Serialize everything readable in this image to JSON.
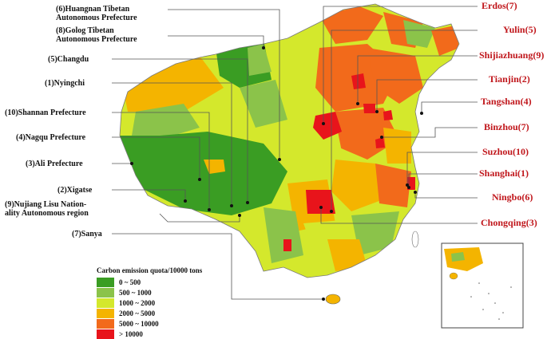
{
  "legend": {
    "title": "Carbon emission quota/10000 tons",
    "items": [
      {
        "label": "0 ~ 500",
        "color": "#3a9d23"
      },
      {
        "label": "500 ~ 1000",
        "color": "#8bc34a"
      },
      {
        "label": "1000 ~ 2000",
        "color": "#d4e82c"
      },
      {
        "label": "2000 ~ 5000",
        "color": "#f4b400"
      },
      {
        "label": "5000 ~ 10000",
        "color": "#f26a1b"
      },
      {
        "label": "> 10000",
        "color": "#e8141b"
      }
    ]
  },
  "left_labels": [
    {
      "line1": "(6)Huangnan Tibetan",
      "line2": "Autonomous Prefecture"
    },
    {
      "line1": "(8)Golog Tibetan",
      "line2": "Autonomous Prefecture"
    },
    {
      "line1": "(5)Changdu",
      "line2": ""
    },
    {
      "line1": "(1)Nyingchi",
      "line2": ""
    },
    {
      "line1": "(10)Shannan Prefecture",
      "line2": ""
    },
    {
      "line1": "(4)Nagqu Prefecture",
      "line2": ""
    },
    {
      "line1": "(3)Ali Prefecture",
      "line2": ""
    },
    {
      "line1": "(2)Xigatse",
      "line2": ""
    },
    {
      "line1": "(9)Nujiang Lisu Nation-",
      "line2": "ality Autonomous region"
    },
    {
      "line1": "(7)Sanya",
      "line2": ""
    }
  ],
  "right_labels": [
    "Erdos(7)",
    "Yulin(5)",
    "Shijiazhuang(9)",
    "Tianjin(2)",
    "Tangshan(4)",
    "Binzhou(7)",
    "Suzhou(10)",
    "Shanghai(1)",
    "Ningbo(6)",
    "Chongqing(3)"
  ],
  "colors": {
    "low_label": "#111111",
    "high_label": "#c0161b"
  }
}
